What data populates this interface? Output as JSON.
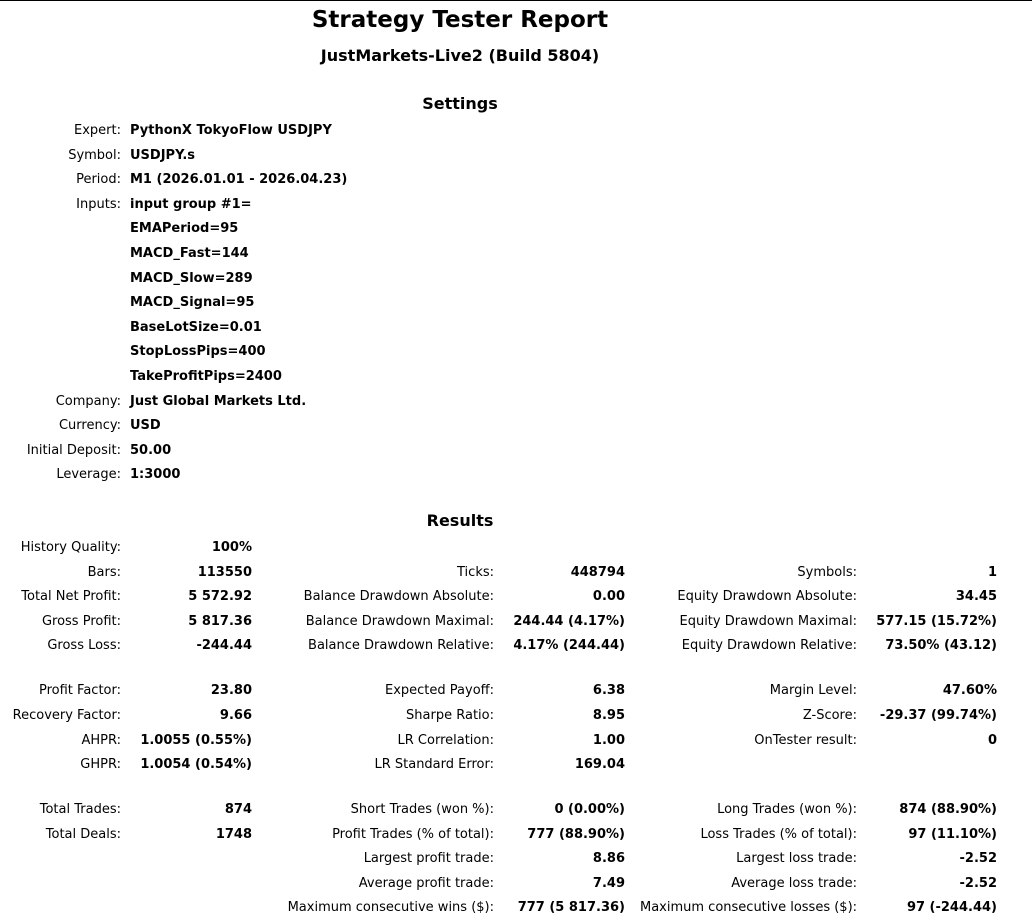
{
  "header": {
    "title": "Strategy Tester Report",
    "subtitle": "JustMarkets-Live2 (Build 5804)"
  },
  "settings": {
    "heading": "Settings",
    "rows": [
      {
        "label": "Expert:",
        "value": "PythonX TokyoFlow USDJPY"
      },
      {
        "label": "Symbol:",
        "value": "USDJPY.s"
      },
      {
        "label": "Period:",
        "value": "M1 (2026.01.01 - 2026.04.23)"
      },
      {
        "label": "Inputs:",
        "value": "input group #1="
      },
      {
        "label": "",
        "value": "EMAPeriod=95"
      },
      {
        "label": "",
        "value": "MACD_Fast=144"
      },
      {
        "label": "",
        "value": "MACD_Slow=289"
      },
      {
        "label": "",
        "value": "MACD_Signal=95"
      },
      {
        "label": "",
        "value": "BaseLotSize=0.01"
      },
      {
        "label": "",
        "value": "StopLossPips=400"
      },
      {
        "label": "",
        "value": "TakeProfitPips=2400"
      },
      {
        "label": "Company:",
        "value": "Just Global Markets Ltd."
      },
      {
        "label": "Currency:",
        "value": "USD"
      },
      {
        "label": "Initial Deposit:",
        "value": "50.00"
      },
      {
        "label": "Leverage:",
        "value": "1:3000"
      }
    ]
  },
  "results": {
    "heading": "Results",
    "rows": [
      {
        "c1l": "History Quality:",
        "c1v": "100%",
        "c2l": "",
        "c2v": "",
        "c3l": "",
        "c3v": ""
      },
      {
        "c1l": "Bars:",
        "c1v": "113550",
        "c2l": "Ticks:",
        "c2v": "448794",
        "c3l": "Symbols:",
        "c3v": "1"
      },
      {
        "c1l": "Total Net Profit:",
        "c1v": "5 572.92",
        "c2l": "Balance Drawdown Absolute:",
        "c2v": "0.00",
        "c3l": "Equity Drawdown Absolute:",
        "c3v": "34.45"
      },
      {
        "c1l": "Gross Profit:",
        "c1v": "5 817.36",
        "c2l": "Balance Drawdown Maximal:",
        "c2v": "244.44 (4.17%)",
        "c3l": "Equity Drawdown Maximal:",
        "c3v": "577.15 (15.72%)"
      },
      {
        "c1l": "Gross Loss:",
        "c1v": "-244.44",
        "c2l": "Balance Drawdown Relative:",
        "c2v": "4.17% (244.44)",
        "c3l": "Equity Drawdown Relative:",
        "c3v": "73.50% (43.12)"
      },
      {
        "c1l": "Profit Factor:",
        "c1v": "23.80",
        "c2l": "Expected Payoff:",
        "c2v": "6.38",
        "c3l": "Margin Level:",
        "c3v": "47.60%"
      },
      {
        "c1l": "Recovery Factor:",
        "c1v": "9.66",
        "c2l": "Sharpe Ratio:",
        "c2v": "8.95",
        "c3l": "Z-Score:",
        "c3v": "-29.37 (99.74%)"
      },
      {
        "c1l": "AHPR:",
        "c1v": "1.0055 (0.55%)",
        "c2l": "LR Correlation:",
        "c2v": "1.00",
        "c3l": "OnTester result:",
        "c3v": "0"
      },
      {
        "c1l": "GHPR:",
        "c1v": "1.0054 (0.54%)",
        "c2l": "LR Standard Error:",
        "c2v": "169.04",
        "c3l": "",
        "c3v": ""
      },
      {
        "c1l": "Total Trades:",
        "c1v": "874",
        "c2l": "Short Trades (won %):",
        "c2v": "0 (0.00%)",
        "c3l": "Long Trades (won %):",
        "c3v": "874 (88.90%)"
      },
      {
        "c1l": "Total Deals:",
        "c1v": "1748",
        "c2l": "Profit Trades (% of total):",
        "c2v": "777 (88.90%)",
        "c3l": "Loss Trades (% of total):",
        "c3v": "97 (11.10%)"
      },
      {
        "c1l": "",
        "c1v": "",
        "c2l": "Largest profit trade:",
        "c2v": "8.86",
        "c3l": "Largest loss trade:",
        "c3v": "-2.52"
      },
      {
        "c1l": "",
        "c1v": "",
        "c2l": "Average profit trade:",
        "c2v": "7.49",
        "c3l": "Average loss trade:",
        "c3v": "-2.52"
      },
      {
        "c1l": "",
        "c1v": "",
        "c2l": "Maximum consecutive wins ($):",
        "c2v": "777 (5 817.36)",
        "c3l": "Maximum consecutive losses ($):",
        "c3v": "97 (-244.44)"
      }
    ]
  }
}
